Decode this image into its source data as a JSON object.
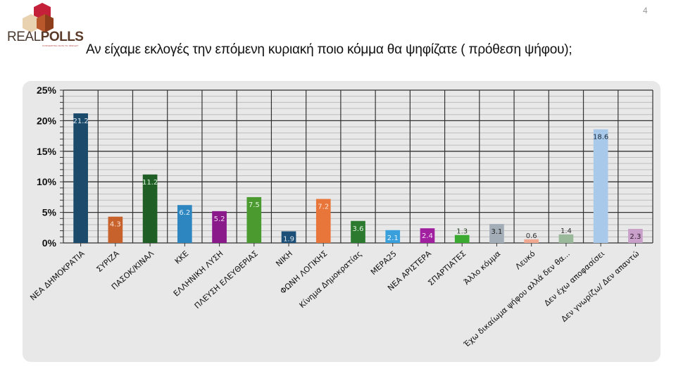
{
  "header": {
    "logo_name": "REALPOLLS",
    "logo_part1": "REAL",
    "logo_part2": "POLLS",
    "logo_tagline": "CONVERTING DATA TO INSIGHT",
    "page_number": "4"
  },
  "chart_data": {
    "type": "bar",
    "title": "Αν είχαμε εκλογές την επόμενη κυριακή ποιο κόμμα θα ψηφίζατε ( πρόθεση ψήφου);",
    "xlabel": "",
    "ylabel": "",
    "ylim": [
      0,
      25
    ],
    "yticks": [
      "0%",
      "5%",
      "10%",
      "15%",
      "20%",
      "25%"
    ],
    "grid": true,
    "legend": "none",
    "categories": [
      "ΝΕΑ ΔΗΜΟΚΡΑΤΙΑ",
      "ΣΥΡΙΖΑ",
      "ΠΑΣΟΚ/ΚΙΝΑΛ",
      "ΚΚΕ",
      "ΕΛΛΗΝΙΚΗ ΛΥΣΗ",
      "ΠΛΕΥΣΗ ΕΛΕΥΘΕΡΙΑΣ",
      "ΝΙΚΗ",
      "ΦΩΝΗ ΛΟΓΙΚΗΣ",
      "Κίνημα Δημοκρατίας",
      "ΜΕΡΑ25",
      "ΝΕΑ ΑΡΙΣΤΕΡΑ",
      "ΣΠΑΡΤΙΑΤΕΣ",
      "Άλλο κόμμα",
      "Λευκό",
      "Έχω δικαίωμα ψήφου αλλά δεν θα...",
      "Δεν έχω αποφασίσει",
      "Δεν γνωρίζω/ Δεν απαντώ"
    ],
    "values": [
      21.2,
      4.3,
      11.2,
      6.2,
      5.2,
      7.5,
      1.9,
      7.2,
      3.6,
      2.1,
      2.4,
      1.3,
      3.1,
      0.6,
      1.4,
      18.6,
      2.3
    ],
    "data_labels": [
      "21.2",
      "4.3",
      "11.2",
      "6.2",
      "5.2",
      "7.5",
      "1.9",
      "7.2",
      "3.6",
      "2.1",
      "2.4",
      "1.3",
      "3.1",
      "0.6",
      "1.4",
      "18.6",
      "2.3"
    ],
    "colors": [
      "#1b4a6b",
      "#c8622c",
      "#1f5f26",
      "#2e86c1",
      "#8a1a8a",
      "#4a9a30",
      "#1c4f77",
      "#e8763a",
      "#2c7a30",
      "#3aa0dc",
      "#a020a0",
      "#3aaa30",
      "#a3adb8",
      "#f0a890",
      "#9ab89a",
      "#a9c9ea",
      "#c9a0c9"
    ],
    "label_colors": [
      "#dfe8f0",
      "#fde0d0",
      "#d8f0d8",
      "#e0f0fb",
      "#f3d6f3",
      "#e6f6df",
      "#e0e8f0",
      "#fde4d6",
      "#e0f3e0",
      "#e6f4fc",
      "#f8dcf8",
      "#1a3a1a",
      "#222222",
      "#333333",
      "#333333",
      "#1a2a3a",
      "#2a1a2a"
    ]
  }
}
